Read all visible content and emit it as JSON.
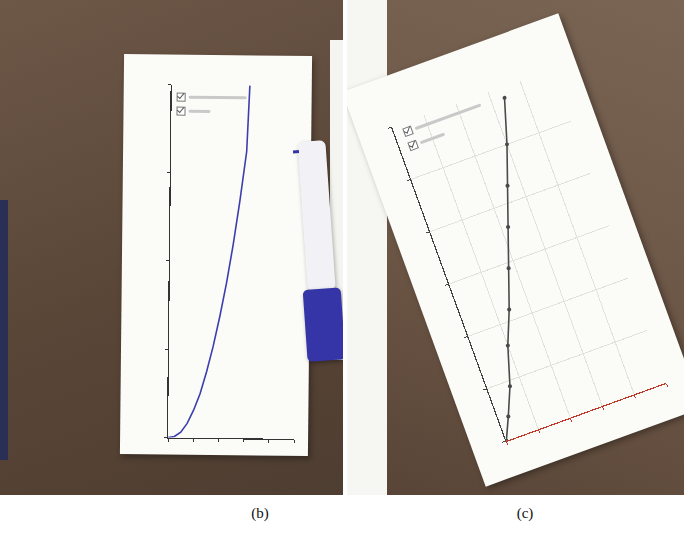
{
  "chart_data": [
    {
      "type": "line",
      "title": "(b)",
      "x": [
        0,
        0.5,
        1,
        1.5,
        2,
        2.5,
        3,
        3.5,
        4,
        4.5,
        5,
        5.5,
        6,
        6.2
      ],
      "values": [
        0,
        0.1,
        0.5,
        1.3,
        2.5,
        4,
        6,
        8.3,
        11,
        14,
        17.5,
        21.5,
        26,
        32
      ],
      "color": "#3b3fae",
      "xlim": [
        0,
        10
      ],
      "ylim": [
        0,
        32
      ],
      "xticks": [
        0,
        2,
        4,
        6,
        8,
        10
      ],
      "yticks": [
        0,
        8,
        16,
        24,
        32
      ],
      "tick_labels": false,
      "grid": false,
      "marker": "none",
      "line_style": "solid"
    },
    {
      "type": "line",
      "title": "(c)",
      "x": [
        0,
        0.6,
        1.3,
        2,
        2.8,
        3.6,
        4.4,
        5.2,
        6,
        6.8
      ],
      "values": [
        0,
        2,
        4.5,
        8,
        11,
        14.5,
        18,
        21.5,
        25,
        29
      ],
      "color": "#4a4a4a",
      "xlim": [
        0,
        10
      ],
      "ylim": [
        0,
        30
      ],
      "xticks": [
        0,
        2,
        4,
        6,
        8,
        10
      ],
      "yticks": [
        0,
        5,
        10,
        15,
        20,
        25,
        30
      ],
      "tick_labels": false,
      "grid": true,
      "marker": "circle",
      "line_style": "solid"
    }
  ]
}
